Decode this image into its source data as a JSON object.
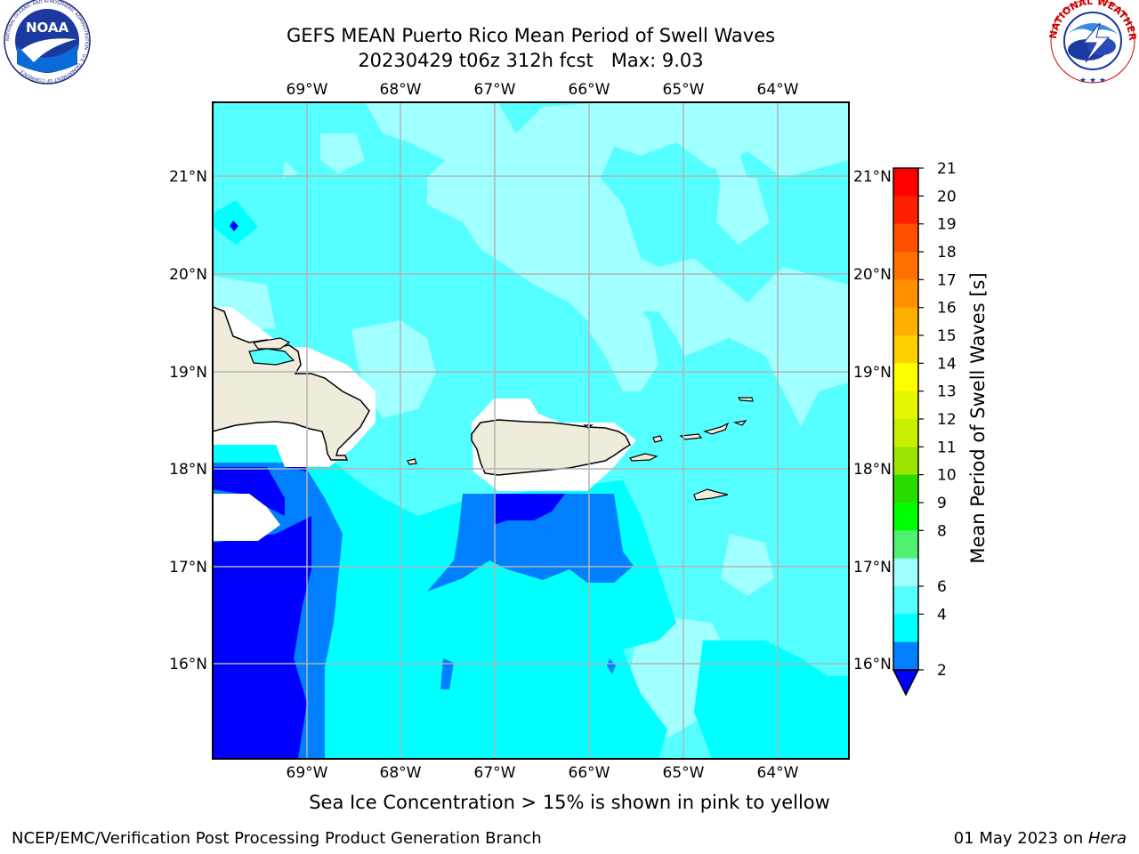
{
  "header": {
    "title_line1": "GEFS MEAN Puerto Rico Mean Period of Swell Waves",
    "title_line2": "20230429 t06z 312h fcst   Max: 9.03"
  },
  "logos": {
    "left": "NOAA",
    "left_ring_text": "NATIONAL OCEANIC AND ATMOSPHERIC ADMINISTRATION · U.S. DEPARTMENT OF COMMERCE",
    "right_ring_text": "NATIONAL WEATHER SERVICE"
  },
  "map": {
    "lon_labels": [
      "69°W",
      "68°W",
      "67°W",
      "66°W",
      "65°W",
      "64°W"
    ],
    "lat_labels_left": [
      "21°N",
      "20°N",
      "19°N",
      "18°N",
      "17°N",
      "16°N"
    ],
    "lat_labels_right": [
      "21°N",
      "20°N",
      "19°N",
      "18°N",
      "17°N",
      "16°N"
    ],
    "colors": {
      "land": "#efecdc",
      "c2_4": "#0080ff",
      "c4_6": "#00ffff",
      "c6_8": "#55ffff",
      "c8_9": "#a0ffff",
      "below2": "#0000ff",
      "grid": "#b4b4b4"
    }
  },
  "colorbar": {
    "label": "Mean Period of Swell Waves [s]",
    "ticks": [
      "21",
      "20",
      "19",
      "18",
      "17",
      "16",
      "15",
      "14",
      "13",
      "12",
      "11",
      "10",
      "9",
      "8",
      "6",
      "4",
      "2"
    ],
    "colors": [
      "#ff0000",
      "#ff2000",
      "#ff5000",
      "#ff7000",
      "#ff9000",
      "#ffb000",
      "#ffd000",
      "#ffff00",
      "#e6f500",
      "#c8f000",
      "#9ae600",
      "#28dc00",
      "#00ff00",
      "#50f070",
      "#a0ffff",
      "#55ffff",
      "#00ffff",
      "#0080ff"
    ],
    "under_color": "#0000ff"
  },
  "caption": "Sea Ice Concentration > 15% is shown in pink to yellow",
  "footer": {
    "left": "NCEP/EMC/Verification Post Processing Product Generation Branch",
    "right_prefix": "01 May 2023 on ",
    "right_italic": "Hera"
  }
}
